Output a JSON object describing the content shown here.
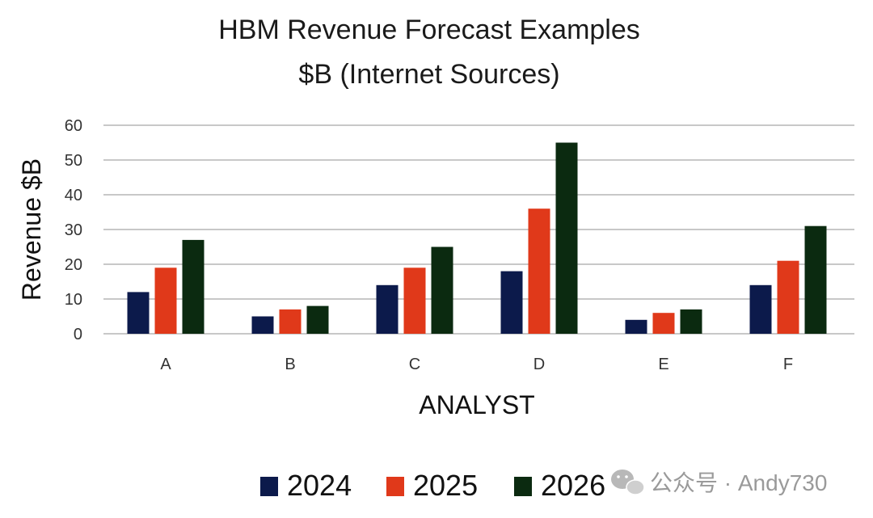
{
  "chart_data": {
    "type": "bar",
    "title": "HBM Revenue Forecast Examples",
    "subtitle": "$B (Internet Sources)",
    "xlabel": "ANALYST",
    "ylabel": "Revenue $B",
    "categories": [
      "A",
      "B",
      "C",
      "D",
      "E",
      "F"
    ],
    "series": [
      {
        "name": "2024",
        "color": "#0c1a4b",
        "values": [
          12,
          5,
          14,
          18,
          4,
          14
        ]
      },
      {
        "name": "2025",
        "color": "#e0391a",
        "values": [
          19,
          7,
          19,
          36,
          6,
          21
        ]
      },
      {
        "name": "2026",
        "color": "#0b2a10",
        "values": [
          27,
          8,
          25,
          55,
          7,
          31
        ]
      }
    ],
    "ylim": [
      0,
      60
    ],
    "yticks": [
      "0",
      "10",
      "20",
      "30",
      "40",
      "50",
      "60"
    ],
    "grid": true,
    "legend": "bottom"
  },
  "watermark": {
    "icon": "wechat-icon",
    "text": "公众号 · Andy730"
  }
}
